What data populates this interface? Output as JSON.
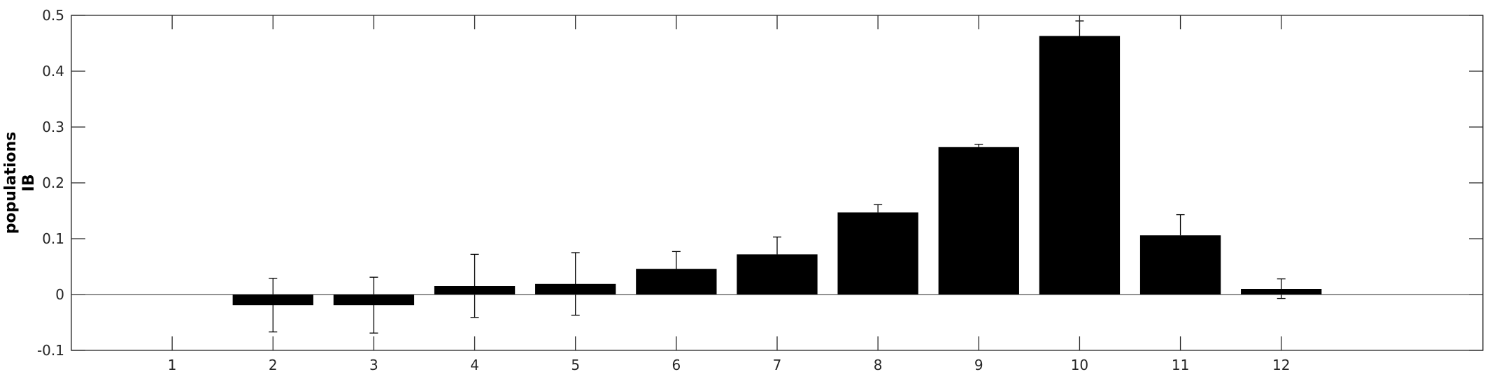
{
  "chart_data": {
    "type": "bar",
    "categories": [
      "1",
      "2",
      "3",
      "4",
      "5",
      "6",
      "7",
      "8",
      "9",
      "10",
      "11",
      "12"
    ],
    "values": [
      0,
      -0.019,
      -0.019,
      0.015,
      0.019,
      0.046,
      0.072,
      0.147,
      0.264,
      0.463,
      0.106,
      0.01
    ],
    "error_upper": [
      null,
      0.029,
      0.031,
      0.072,
      0.075,
      0.077,
      0.103,
      0.161,
      0.269,
      0.49,
      0.143,
      0.028
    ],
    "error_lower": [
      null,
      -0.067,
      -0.069,
      -0.041,
      -0.037,
      null,
      null,
      null,
      null,
      null,
      null,
      -0.007
    ],
    "ylabel_lines": [
      "populations",
      "IB"
    ],
    "xlabel": "",
    "ylim": [
      -0.1,
      0.5
    ],
    "yticks": [
      "-0.1",
      "0",
      "0.1",
      "0.2",
      "0.3",
      "0.4",
      "0.5"
    ],
    "ytick_values": [
      -0.1,
      0,
      0.1,
      0.2,
      0.3,
      0.4,
      0.5
    ],
    "x_range": [
      0,
      14
    ],
    "bar_color": "#000000",
    "grid": false,
    "legend": "none"
  }
}
